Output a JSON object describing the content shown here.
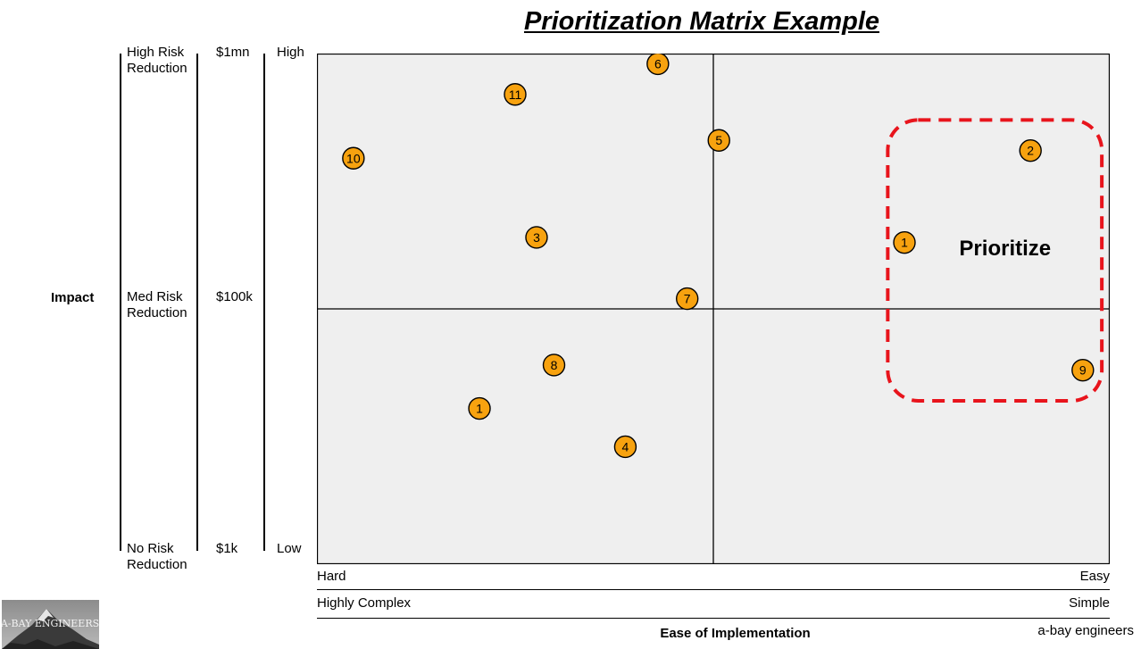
{
  "title": "Prioritization Matrix Example",
  "y_axis": {
    "name": "Impact",
    "risk_scale": {
      "high": "High Risk\nReduction",
      "med": "Med Risk\nReduction",
      "low": "No Risk\nReduction"
    },
    "cost_scale": {
      "high": "$1mn",
      "med": "$100k",
      "low": "$1k"
    },
    "level_scale": {
      "high": "High",
      "low": "Low"
    }
  },
  "x_axis": {
    "name": "Ease of Implementation",
    "ease_scale": {
      "left": "Hard",
      "right": "Easy"
    },
    "complexity_scale": {
      "left": "Highly Complex",
      "right": "Simple"
    }
  },
  "highlight": {
    "label": "Prioritize",
    "color": "#e8141c"
  },
  "colors": {
    "plot_bg": "#efefef",
    "point_fill": "#f7a20f",
    "point_stroke": "#000000"
  },
  "footer": {
    "credit": "a-bay engineers",
    "logo_text": "A-BAY ENGINEERS"
  },
  "chart_data": {
    "type": "scatter",
    "title": "Prioritization Matrix Example",
    "xlabel": "Ease of Implementation",
    "ylabel": "Impact",
    "xlim": [
      0,
      1
    ],
    "ylim": [
      0,
      1
    ],
    "grid": false,
    "points": [
      {
        "label": "6",
        "x": 0.43,
        "y": 0.98
      },
      {
        "label": "11",
        "x": 0.25,
        "y": 0.92
      },
      {
        "label": "5",
        "x": 0.507,
        "y": 0.83
      },
      {
        "label": "2",
        "x": 0.9,
        "y": 0.81
      },
      {
        "label": "10",
        "x": 0.046,
        "y": 0.795
      },
      {
        "label": "3",
        "x": 0.277,
        "y": 0.64
      },
      {
        "label": "1",
        "x": 0.741,
        "y": 0.63
      },
      {
        "label": "7",
        "x": 0.467,
        "y": 0.52
      },
      {
        "label": "8",
        "x": 0.299,
        "y": 0.39
      },
      {
        "label": "9",
        "x": 0.966,
        "y": 0.38
      },
      {
        "label": "1",
        "x": 0.205,
        "y": 0.305
      },
      {
        "label": "4",
        "x": 0.389,
        "y": 0.23
      }
    ],
    "highlight_region": {
      "label": "Prioritize",
      "x": [
        0.72,
        0.99
      ],
      "y": [
        0.32,
        0.87
      ]
    }
  }
}
